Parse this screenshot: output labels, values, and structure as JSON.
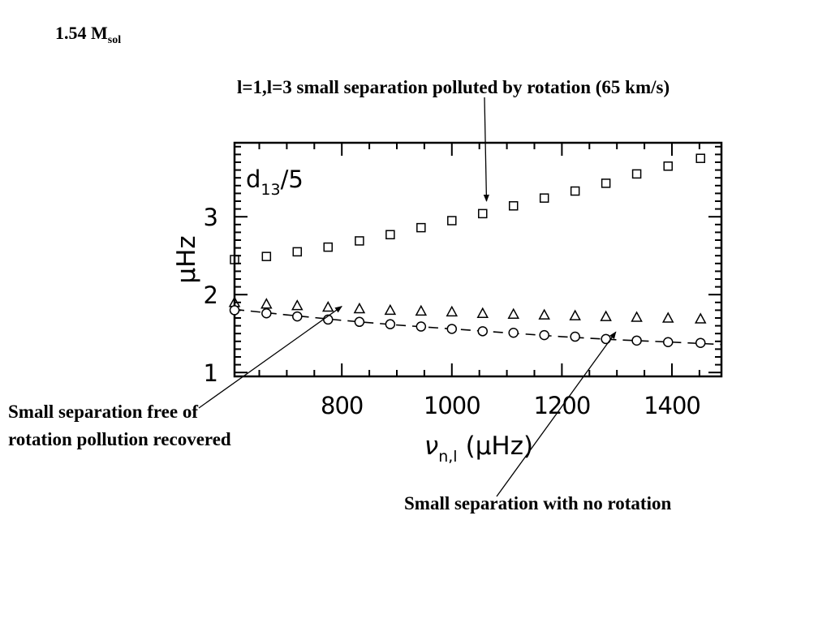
{
  "slide": {
    "title_main": "1.54 M",
    "title_sub": "sol"
  },
  "annotations": {
    "rotation_polluted": "l=1,l=3 small separation polluted by rotation (65 km/s)",
    "free_recovered": "Small separation free of rotation pollution recovered",
    "no_rotation": "Small separation with no rotation"
  },
  "chart_data": {
    "type": "scatter",
    "panel_label": {
      "main": "d",
      "sub": "13",
      "rest": "/5"
    },
    "xlabel": {
      "symbol": "ν",
      "sub": "n,l",
      "unit": "(μHz)"
    },
    "ylabel": "μHz",
    "xlim": [
      605,
      1490
    ],
    "ylim": [
      0.95,
      3.95
    ],
    "x_ticks": [
      800,
      1000,
      1200,
      1400
    ],
    "y_ticks": [
      1,
      2,
      3
    ],
    "grid": false,
    "series": [
      {
        "marker": "square",
        "x": [
          605,
          663,
          719,
          775,
          832,
          888,
          944,
          1000,
          1056,
          1112,
          1168,
          1224,
          1280,
          1336,
          1393,
          1452
        ],
        "y": [
          2.45,
          2.49,
          2.55,
          2.61,
          2.69,
          2.77,
          2.86,
          2.95,
          3.04,
          3.14,
          3.24,
          3.33,
          3.43,
          3.55,
          3.65,
          3.75
        ]
      },
      {
        "marker": "triangle",
        "x": [
          605,
          663,
          719,
          775,
          832,
          888,
          944,
          1000,
          1056,
          1112,
          1168,
          1224,
          1280,
          1336,
          1393,
          1452
        ],
        "y": [
          1.9,
          1.88,
          1.86,
          1.84,
          1.82,
          1.8,
          1.79,
          1.78,
          1.76,
          1.75,
          1.74,
          1.73,
          1.72,
          1.71,
          1.7,
          1.69
        ]
      },
      {
        "marker": "circle",
        "x": [
          605,
          663,
          719,
          775,
          832,
          888,
          944,
          1000,
          1056,
          1112,
          1168,
          1224,
          1280,
          1336,
          1393,
          1452
        ],
        "y": [
          1.8,
          1.76,
          1.72,
          1.68,
          1.65,
          1.62,
          1.59,
          1.56,
          1.53,
          1.51,
          1.48,
          1.46,
          1.43,
          1.41,
          1.39,
          1.38
        ]
      },
      {
        "marker": "dashed-line",
        "x": [
          605,
          700,
          800,
          900,
          1000,
          1100,
          1200,
          1300,
          1400,
          1490
        ],
        "y": [
          1.81,
          1.74,
          1.67,
          1.61,
          1.56,
          1.51,
          1.46,
          1.42,
          1.39,
          1.36
        ]
      }
    ],
    "arrows": [
      {
        "to": "rotation-series",
        "x": 1063,
        "y": 3.2
      },
      {
        "to": "recovered-series",
        "x": 800,
        "y": 1.85
      },
      {
        "to": "no-rotation-series",
        "x": 1298,
        "y": 1.52
      }
    ]
  }
}
